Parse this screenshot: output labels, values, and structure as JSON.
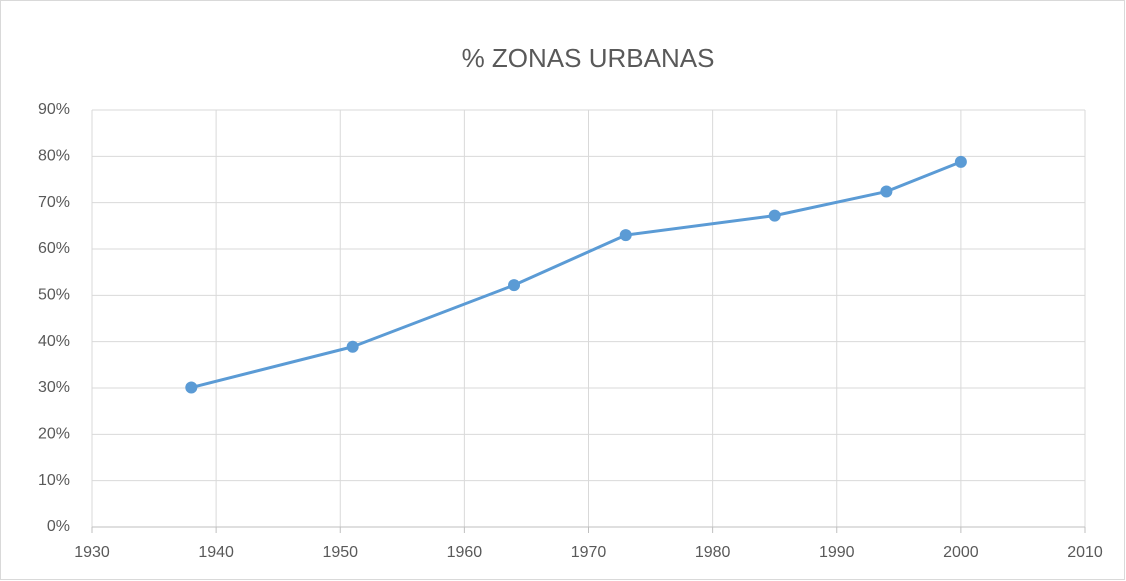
{
  "chart_data": {
    "type": "line",
    "title": "% ZONAS URBANAS",
    "x": [
      1938,
      1951,
      1964,
      1973,
      1985,
      1994,
      2000
    ],
    "values": [
      30.1,
      38.9,
      52.2,
      63.0,
      67.2,
      72.4,
      78.8
    ],
    "color": "#5b9bd5",
    "xlim": [
      1930,
      2010
    ],
    "xticks": [
      1930,
      1940,
      1950,
      1960,
      1970,
      1980,
      1990,
      2000,
      2010
    ],
    "ylim": [
      0,
      90
    ],
    "yticks": [
      {
        "value": 0,
        "label": "0%"
      },
      {
        "value": 10,
        "label": "10%"
      },
      {
        "value": 20,
        "label": "20%"
      },
      {
        "value": 30,
        "label": "30%"
      },
      {
        "value": 40,
        "label": "40%"
      },
      {
        "value": 50,
        "label": "50%"
      },
      {
        "value": 60,
        "label": "60%"
      },
      {
        "value": 70,
        "label": "70%"
      },
      {
        "value": 80,
        "label": "80%"
      },
      {
        "value": 90,
        "label": "90%"
      }
    ],
    "grid": true
  }
}
